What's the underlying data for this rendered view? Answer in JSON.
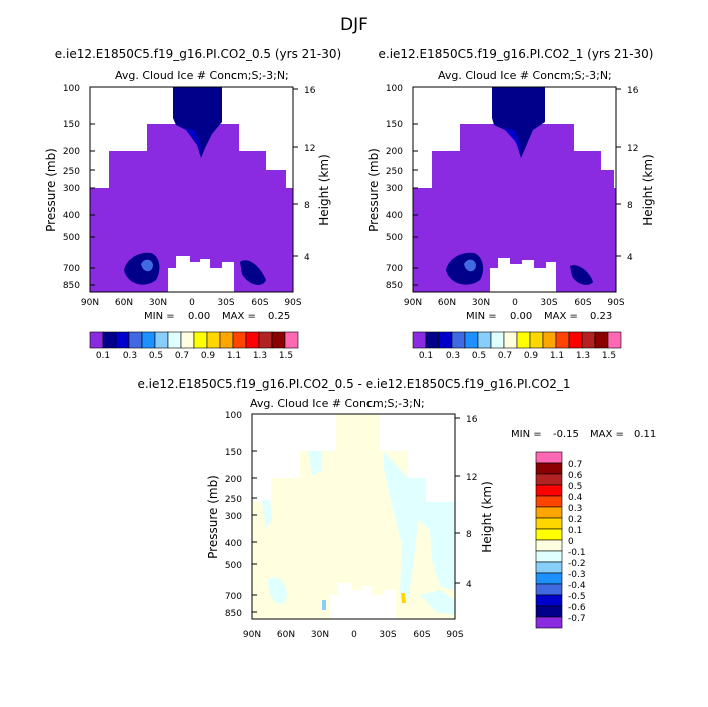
{
  "page_title": "DJF",
  "colors": {
    "c01": "#8a2be2",
    "c02": "#00008b",
    "c03": "#0000cd",
    "c04": "#4169e1",
    "c05": "#1e90ff",
    "c06": "#87cefa",
    "c07": "#e0ffff",
    "c08": "#ffffe0",
    "c09": "#ffff00",
    "c10": "#ffd700",
    "c11": "#ffa500",
    "c12": "#ff4500",
    "c13": "#ff0000",
    "c14": "#b22222",
    "c15": "#8b0000",
    "c16": "#ff69b4"
  },
  "chart_data": [
    {
      "type": "contour",
      "title": "e.ie12.E1850C5.f19_g16.PI.CO2_0.5 (yrs 21-30)",
      "variable_label": "Avg. Cloud Ice # Conc.",
      "units_label": "cm;S;-3;N;",
      "xlabel": "",
      "ylabel": "Pressure (mb)",
      "y2label": "Height (km)",
      "x_ticks": [
        "90N",
        "60N",
        "30N",
        "0",
        "30S",
        "60S",
        "90S"
      ],
      "y_ticks": [
        100,
        150,
        200,
        250,
        300,
        400,
        500,
        700,
        850
      ],
      "y2_ticks": [
        16,
        12,
        8,
        4
      ],
      "min_label": "MIN =",
      "min_value": "0.00",
      "max_label": "MAX =",
      "max_value": "0.25",
      "colorbar_labels": [
        "0.1",
        "0.3",
        "0.5",
        "0.7",
        "0.9",
        "1.1",
        "1.3",
        "1.5"
      ]
    },
    {
      "type": "contour",
      "title": "e.ie12.E1850C5.f19_g16.PI.CO2_1 (yrs 21-30)",
      "variable_label": "Avg. Cloud Ice # Conc.",
      "units_label": "cm;S;-3;N;",
      "xlabel": "",
      "ylabel": "Pressure (mb)",
      "y2label": "Height (km)",
      "x_ticks": [
        "90N",
        "60N",
        "30N",
        "0",
        "30S",
        "60S",
        "90S"
      ],
      "y_ticks": [
        100,
        150,
        200,
        250,
        300,
        400,
        500,
        700,
        850
      ],
      "y2_ticks": [
        16,
        12,
        8,
        4
      ],
      "min_label": "MIN =",
      "min_value": "0.00",
      "max_label": "MAX =",
      "max_value": "0.23",
      "colorbar_labels": [
        "0.1",
        "0.3",
        "0.5",
        "0.7",
        "0.9",
        "1.1",
        "1.3",
        "1.5"
      ]
    },
    {
      "type": "contour",
      "title": "e.ie12.E1850C5.f19_g16.PI.CO2_0.5 - e.ie12.E1850C5.f19_g16.PI.CO2_1",
      "variable_label": "Avg. Cloud Ice # Conc.",
      "units_label": "cm;S;-3;N;",
      "xlabel": "",
      "ylabel": "Pressure (mb)",
      "y2label": "Height (km)",
      "x_ticks": [
        "90N",
        "60N",
        "30N",
        "0",
        "30S",
        "60S",
        "90S"
      ],
      "y_ticks": [
        100,
        150,
        200,
        250,
        300,
        400,
        500,
        700,
        850
      ],
      "y2_ticks": [
        16,
        12,
        8,
        4
      ],
      "min_label": "MIN =",
      "min_value": "-0.15",
      "max_label": "MAX =",
      "max_value": "0.11",
      "colorbar_labels": [
        "0.7",
        "0.6",
        "0.5",
        "0.4",
        "0.3",
        "0.2",
        "0.1",
        "0",
        "-0.1",
        "-0.2",
        "-0.3",
        "-0.4",
        "-0.5",
        "-0.6",
        "-0.7"
      ]
    }
  ]
}
